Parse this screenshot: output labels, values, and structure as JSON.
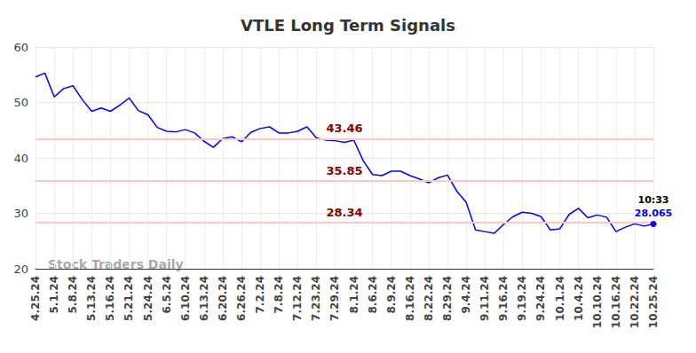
{
  "chart_data": {
    "type": "line",
    "title": "VTLE Long Term Signals",
    "categories": [
      "4.25.24",
      null,
      "5.1.24",
      null,
      "5.8.24",
      null,
      "5.13.24",
      null,
      "5.16.24",
      null,
      "5.21.24",
      null,
      "5.24.24",
      null,
      "6.5.24",
      null,
      "6.10.24",
      null,
      "6.13.24",
      null,
      "6.20.24",
      null,
      "6.26.24",
      null,
      "7.2.24",
      null,
      "7.8.24",
      null,
      "7.12.24",
      null,
      "7.23.24",
      null,
      "7.29.24",
      null,
      "8.1.24",
      null,
      "8.6.24",
      null,
      "8.9.24",
      null,
      "8.16.24",
      null,
      "8.22.24",
      null,
      "8.29.24",
      null,
      "9.4.24",
      null,
      "9.11.24",
      null,
      "9.16.24",
      null,
      "9.19.24",
      null,
      "9.24.24",
      null,
      "10.1.24",
      null,
      "10.4.24",
      null,
      "10.10.24",
      null,
      "10.16.24",
      null,
      "10.22.24",
      null,
      "10.25.24"
    ],
    "values": [
      54.6,
      55.3,
      51.0,
      52.5,
      53.0,
      50.5,
      48.4,
      49.0,
      48.4,
      49.5,
      50.8,
      48.5,
      47.8,
      45.5,
      44.8,
      44.7,
      45.1,
      44.5,
      43.0,
      41.9,
      43.5,
      43.8,
      42.9,
      44.6,
      45.3,
      45.6,
      44.5,
      44.5,
      44.8,
      45.6,
      43.6,
      43.2,
      43.1,
      42.8,
      43.2,
      39.5,
      37.0,
      36.8,
      37.6,
      37.6,
      36.8,
      36.2,
      35.5,
      36.4,
      36.9,
      34.0,
      32.0,
      27.0,
      26.7,
      26.4,
      28.0,
      29.4,
      30.2,
      30.0,
      29.4,
      27.0,
      27.2,
      29.8,
      30.9,
      29.2,
      29.7,
      29.3,
      26.7,
      27.5,
      28.1,
      27.7,
      28.065
    ],
    "color": "#0000ff",
    "ylim": [
      20,
      60
    ],
    "yticks": [
      20,
      30,
      40,
      50,
      60
    ],
    "grid": true,
    "levels": [
      43.46,
      35.85,
      28.34
    ],
    "last_point": {
      "time": "10:33",
      "value": 28.065
    },
    "watermark": "Stock Traders Daily"
  }
}
